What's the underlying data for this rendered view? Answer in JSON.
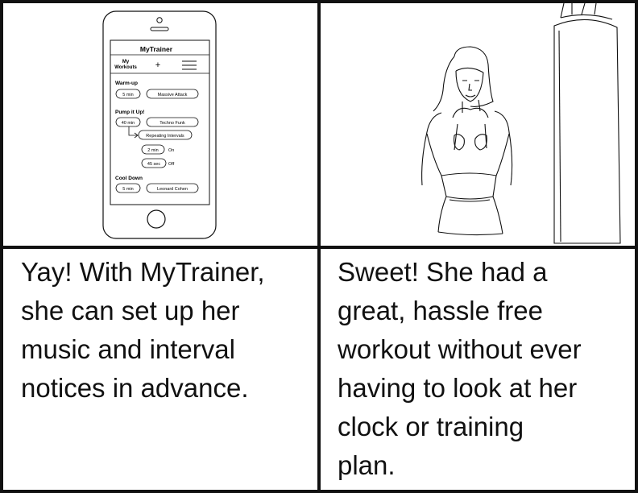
{
  "phone": {
    "app_title": "MyTrainer",
    "nav": {
      "my": "My",
      "workouts": "Workouts",
      "add": "+"
    },
    "sections": [
      {
        "title": "Warm-up",
        "time": "5 min",
        "music": "Massive Attack"
      },
      {
        "title": "Pump it Up!",
        "time": "40 min",
        "music": "Techno Funk",
        "sub": {
          "label": "Repeating Intervals",
          "on_time": "2 min",
          "on_label": "On",
          "off_time": "45 sec",
          "off_label": "Off"
        }
      },
      {
        "title": "Cool Down",
        "time": "5 min",
        "music": "Leonard Cohen"
      }
    ]
  },
  "captions": {
    "left": [
      "Yay! With MyTrainer,",
      "she can set up her",
      "music and interval",
      "notices in advance."
    ],
    "right": [
      "Sweet! She had a",
      "great, hassle free",
      "workout without ever",
      "having to look at her",
      "clock or training",
      "plan."
    ]
  },
  "colors": {
    "line": "#111111",
    "background": "#ffffff"
  },
  "icons": [
    "menu-icon",
    "home-button-icon",
    "arrow-icon"
  ]
}
